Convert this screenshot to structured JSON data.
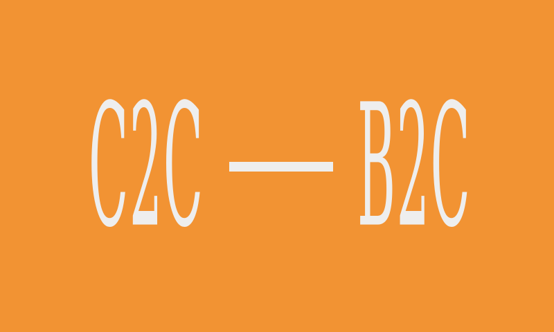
{
  "graphic": {
    "left_text": "C2C",
    "right_text": "B2C",
    "background_color": "#F29333",
    "text_color": "#EEEEEE"
  }
}
